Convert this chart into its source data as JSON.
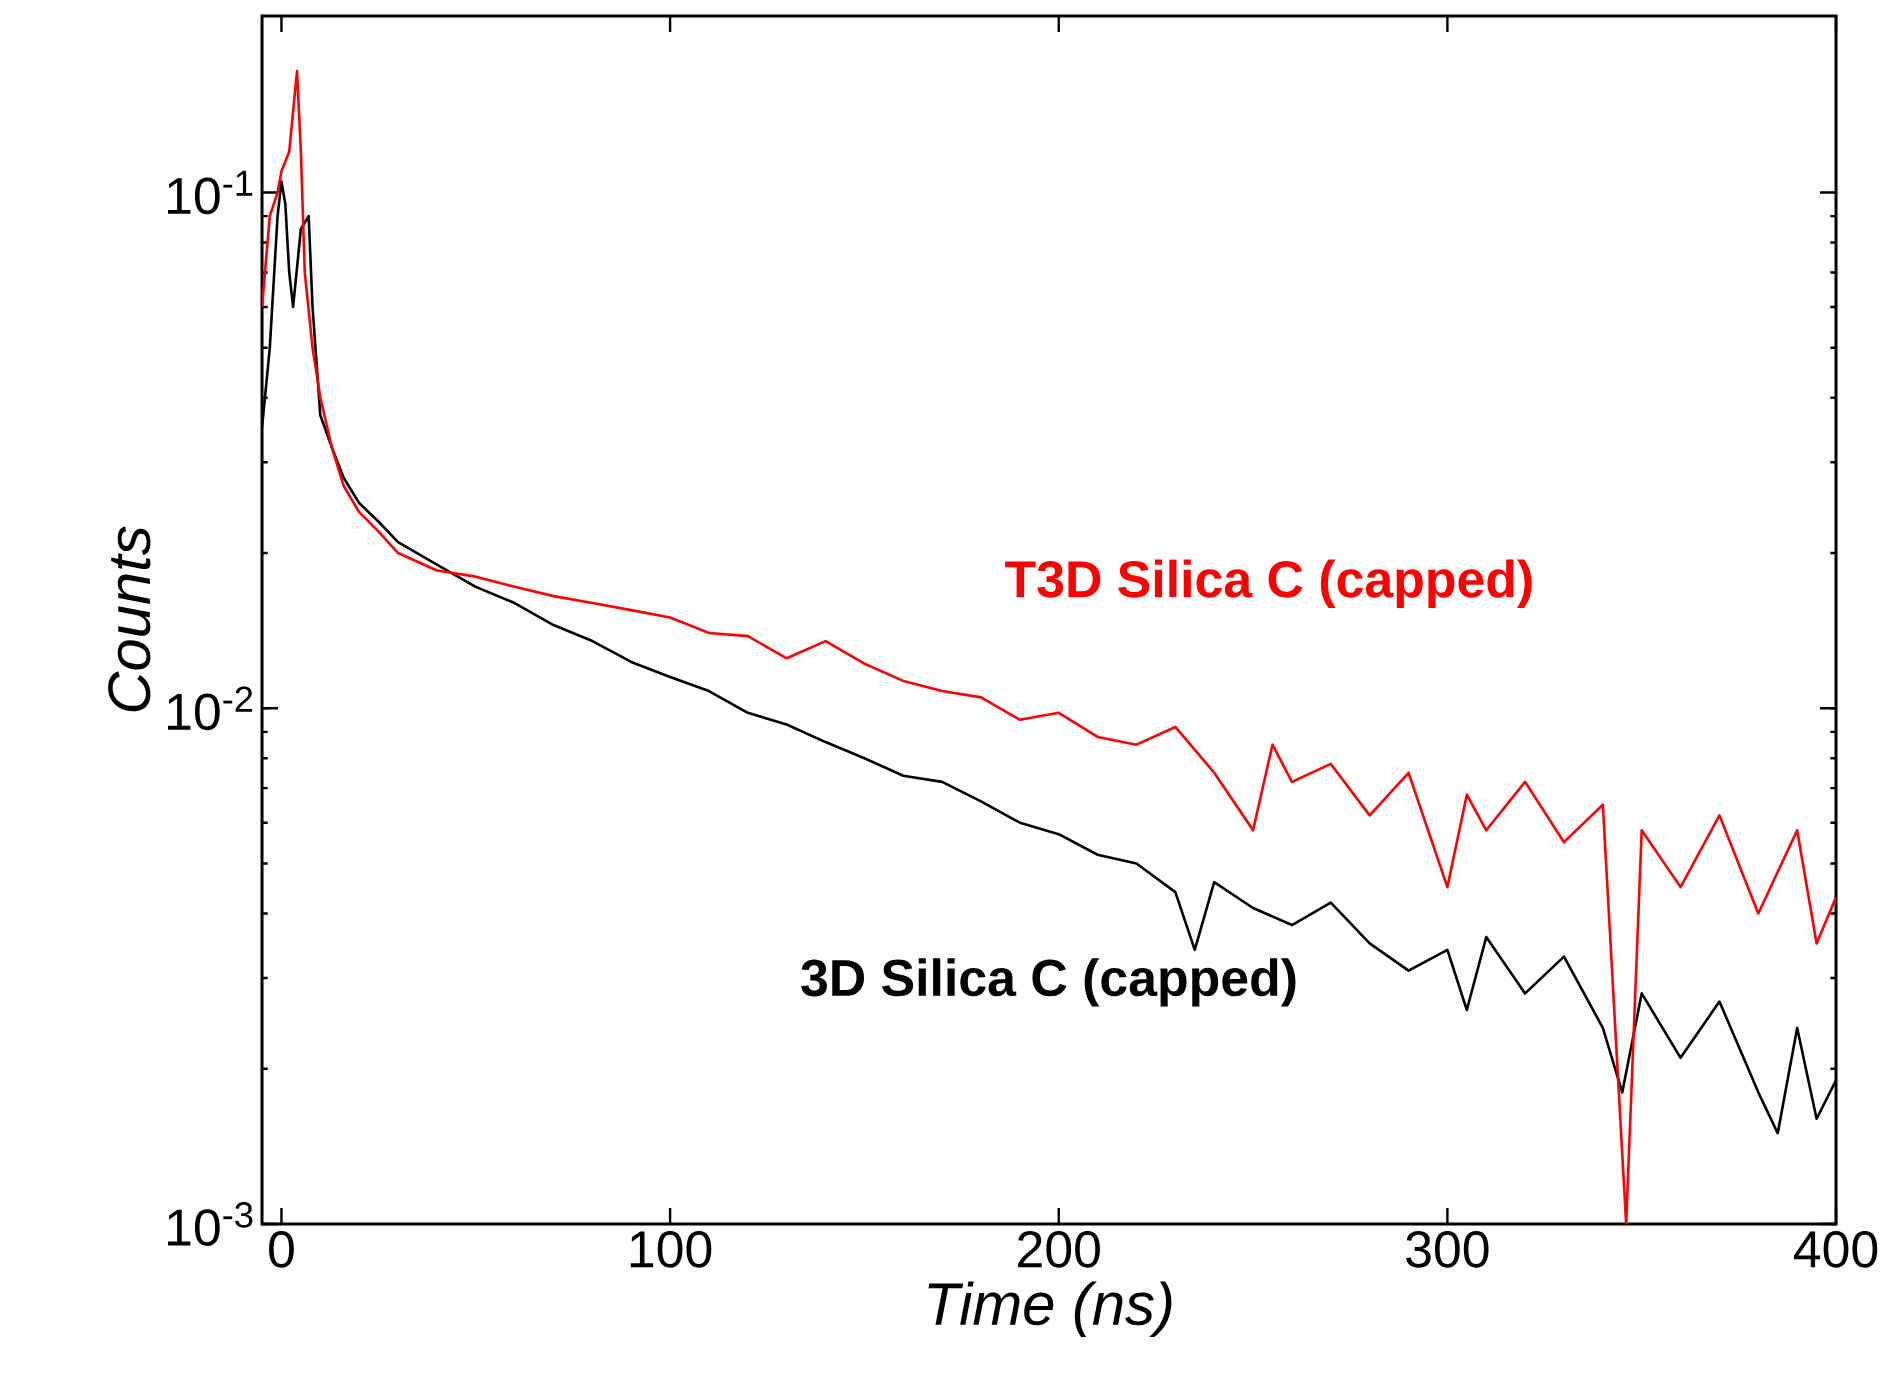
{
  "chart_data": {
    "type": "line",
    "xlabel": "Time (ns)",
    "ylabel": "Counts",
    "log": "y",
    "xlim": [
      -5,
      400
    ],
    "ylim": [
      0.001,
      0.22
    ],
    "xticks": [
      0,
      100,
      200,
      300,
      400
    ],
    "yticks": [
      {
        "value": 0.001,
        "label": "10$^{-3}$"
      },
      {
        "value": 0.01,
        "label": "10$^{-2}$"
      },
      {
        "value": 0.1,
        "label": "10$^{-1}$"
      }
    ],
    "series": [
      {
        "name": "3D Silica C (capped)",
        "color": "#000000",
        "x": [
          -5,
          -3,
          -1,
          0,
          1,
          2,
          3,
          5,
          7,
          8,
          10,
          13,
          16,
          20,
          25,
          30,
          40,
          50,
          60,
          70,
          80,
          90,
          100,
          110,
          120,
          130,
          140,
          150,
          160,
          170,
          180,
          190,
          200,
          210,
          220,
          230,
          235,
          240,
          250,
          260,
          270,
          280,
          290,
          300,
          305,
          310,
          320,
          330,
          340,
          345,
          350,
          360,
          370,
          380,
          385,
          390,
          395,
          400
        ],
        "values": [
          0.035,
          0.05,
          0.09,
          0.105,
          0.095,
          0.07,
          0.06,
          0.085,
          0.09,
          0.06,
          0.037,
          0.032,
          0.028,
          0.025,
          0.023,
          0.021,
          0.019,
          0.0172,
          0.016,
          0.0145,
          0.0135,
          0.0123,
          0.0115,
          0.0108,
          0.0098,
          0.0093,
          0.0086,
          0.008,
          0.0074,
          0.0072,
          0.0066,
          0.006,
          0.0057,
          0.0052,
          0.005,
          0.0044,
          0.0034,
          0.0046,
          0.0041,
          0.0038,
          0.0042,
          0.0035,
          0.0031,
          0.0034,
          0.0026,
          0.0036,
          0.0028,
          0.0033,
          0.0024,
          0.0018,
          0.0028,
          0.0021,
          0.0027,
          0.0018,
          0.0015,
          0.0024,
          0.0016,
          0.0019
        ]
      },
      {
        "name": "T3D Silica C (capped)",
        "color": "#ff0000",
        "x": [
          -5,
          -3,
          -1,
          0,
          2,
          4,
          5,
          6,
          8,
          10,
          13,
          16,
          20,
          25,
          30,
          40,
          50,
          60,
          70,
          80,
          90,
          100,
          110,
          120,
          130,
          140,
          150,
          160,
          170,
          180,
          190,
          200,
          210,
          220,
          230,
          240,
          250,
          255,
          260,
          270,
          280,
          290,
          300,
          305,
          310,
          320,
          330,
          340,
          346,
          350,
          360,
          370,
          380,
          390,
          395,
          400
        ],
        "values": [
          0.06,
          0.09,
          0.1,
          0.11,
          0.12,
          0.172,
          0.12,
          0.07,
          0.05,
          0.04,
          0.032,
          0.027,
          0.024,
          0.022,
          0.02,
          0.0185,
          0.018,
          0.0172,
          0.0165,
          0.016,
          0.0155,
          0.015,
          0.014,
          0.0138,
          0.0125,
          0.0135,
          0.0122,
          0.0113,
          0.0108,
          0.0105,
          0.0095,
          0.0098,
          0.0088,
          0.0085,
          0.0092,
          0.0075,
          0.0058,
          0.0085,
          0.0072,
          0.0078,
          0.0062,
          0.0075,
          0.0045,
          0.0068,
          0.0058,
          0.0072,
          0.0055,
          0.0065,
          0.001,
          0.0058,
          0.0045,
          0.0062,
          0.004,
          0.0058,
          0.0035,
          0.0043
        ]
      }
    ]
  }
}
